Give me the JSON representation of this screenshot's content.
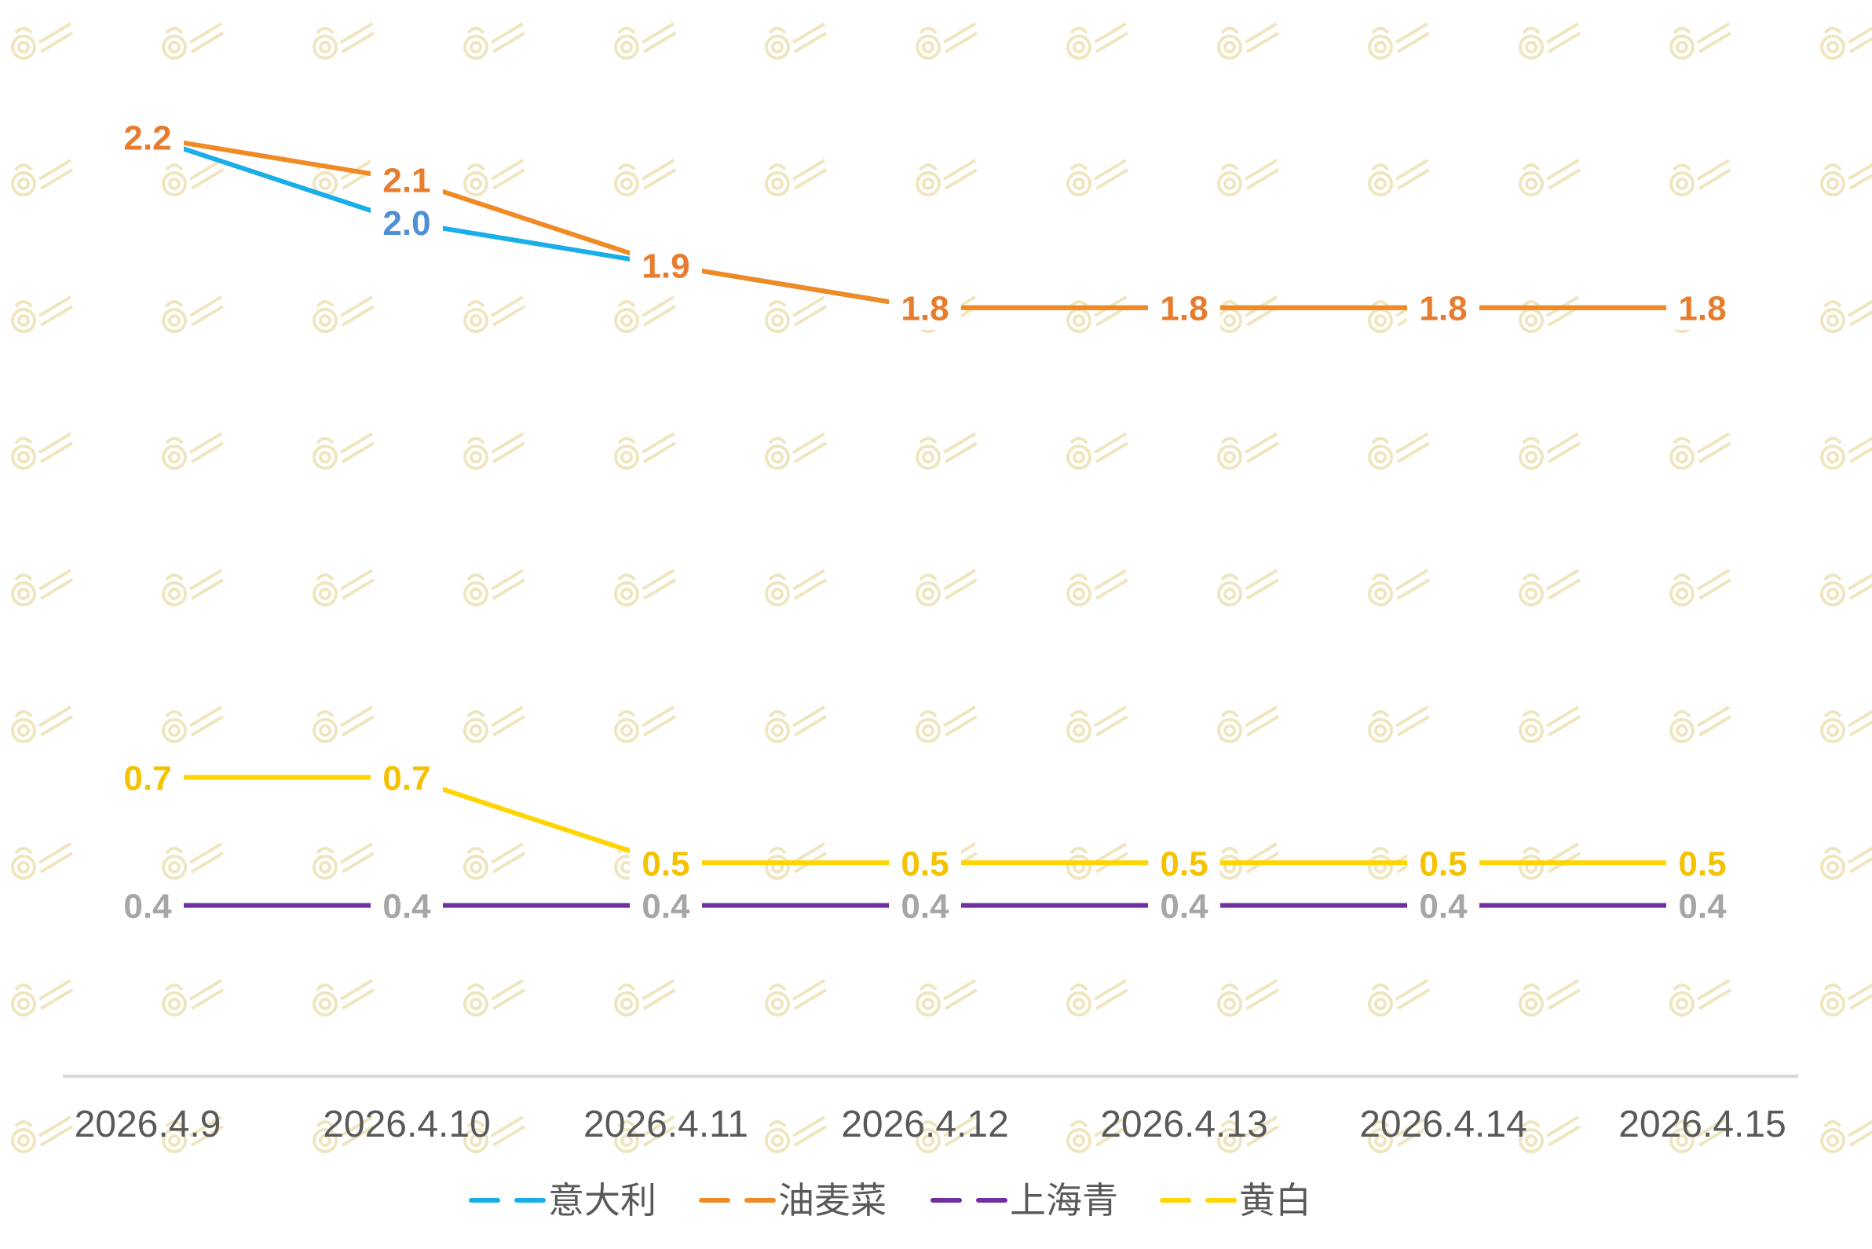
{
  "chart_data": {
    "type": "line",
    "categories": [
      "2026.4.9",
      "2026.4.10",
      "2026.4.11",
      "2026.4.12",
      "2026.4.13",
      "2026.4.14",
      "2026.4.15"
    ],
    "series": [
      {
        "name": "意大利",
        "color": "#1aaee8",
        "label_color": "#4e8fd6",
        "values": [
          2.2,
          2.0,
          1.9,
          1.8,
          1.8,
          1.8,
          1.8
        ],
        "labels_shown": [
          false,
          true,
          false,
          false,
          false,
          false,
          false
        ]
      },
      {
        "name": "油麦菜",
        "color": "#f08a24",
        "label_color": "#e77c2e",
        "values": [
          2.2,
          2.1,
          1.9,
          1.8,
          1.8,
          1.8,
          1.8
        ],
        "labels_shown": [
          true,
          true,
          true,
          true,
          true,
          true,
          true
        ]
      },
      {
        "name": "上海青",
        "color": "#7030a0",
        "label_color": "#a6a6a6",
        "values": [
          0.4,
          0.4,
          0.4,
          0.4,
          0.4,
          0.4,
          0.4
        ],
        "labels_shown": [
          true,
          true,
          true,
          true,
          true,
          true,
          true
        ]
      },
      {
        "name": "黄白",
        "color": "#ffd400",
        "label_color": "#f5c200",
        "values": [
          0.7,
          0.7,
          0.5,
          0.5,
          0.5,
          0.5,
          0.5
        ],
        "labels_shown": [
          true,
          true,
          true,
          true,
          true,
          true,
          true
        ]
      }
    ],
    "ylim": [
      0,
      2.3
    ],
    "grid": false,
    "legend_position": "bottom",
    "axis_color": "#d9d9d9",
    "label_decimals": 1
  }
}
